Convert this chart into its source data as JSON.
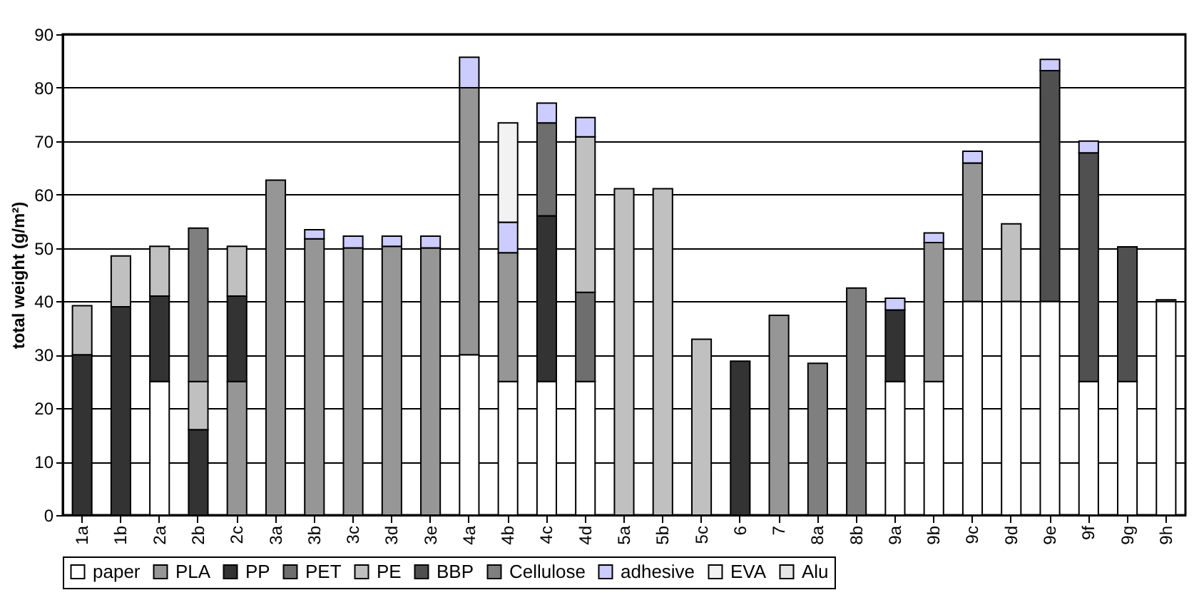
{
  "chart_data": {
    "type": "bar",
    "stacked": true,
    "ylabel": "total weight (g/m²)",
    "categories": [
      "1a",
      "1b",
      "2a",
      "2b",
      "2c",
      "3a",
      "3b",
      "3c",
      "3d",
      "3e",
      "4a",
      "4b",
      "4c",
      "4d",
      "5a",
      "5b",
      "5c",
      "6",
      "7",
      "8a",
      "8b",
      "9a",
      "9b",
      "9c",
      "9d",
      "9e",
      "9f",
      "9g",
      "9h"
    ],
    "series": [
      {
        "name": "paper",
        "color": "#ffffff",
        "values": [
          null,
          null,
          25,
          null,
          null,
          null,
          null,
          null,
          null,
          null,
          30,
          25,
          25,
          25,
          null,
          null,
          null,
          null,
          null,
          null,
          null,
          25,
          25,
          40,
          40,
          40,
          25,
          25,
          40
        ]
      },
      {
        "name": "PLA",
        "color": "#969696",
        "values": [
          null,
          null,
          null,
          null,
          25,
          62.7,
          51.7,
          50,
          50.3,
          50,
          50,
          24.1,
          null,
          null,
          null,
          null,
          null,
          null,
          37.4,
          null,
          null,
          null,
          26,
          25.9,
          null,
          null,
          null,
          null,
          null
        ]
      },
      {
        "name": "PP",
        "color": "#333333",
        "values": [
          30,
          39,
          16,
          16,
          16,
          null,
          null,
          null,
          null,
          null,
          null,
          null,
          31,
          null,
          null,
          null,
          null,
          28.8,
          null,
          null,
          null,
          13.4,
          null,
          null,
          null,
          null,
          null,
          null,
          null
        ]
      },
      {
        "name": "PET",
        "color": "#6e6e6e",
        "values": [
          null,
          null,
          null,
          null,
          null,
          null,
          null,
          null,
          null,
          null,
          null,
          null,
          17.4,
          16.7,
          null,
          null,
          null,
          null,
          null,
          null,
          null,
          null,
          null,
          null,
          null,
          null,
          null,
          null,
          null
        ]
      },
      {
        "name": "PE",
        "color": "#c0c0c0",
        "values": [
          9.2,
          9.5,
          9.3,
          9,
          9.3,
          null,
          null,
          null,
          null,
          null,
          null,
          null,
          null,
          29.1,
          61.1,
          61.1,
          32.9,
          null,
          null,
          null,
          null,
          null,
          null,
          null,
          14.5,
          null,
          null,
          null,
          null
        ]
      },
      {
        "name": "BBP",
        "color": "#505050",
        "values": [
          null,
          null,
          null,
          null,
          null,
          null,
          null,
          null,
          null,
          null,
          null,
          null,
          null,
          null,
          null,
          null,
          null,
          null,
          null,
          null,
          null,
          null,
          null,
          null,
          null,
          43.2,
          42.8,
          25.2,
          null
        ]
      },
      {
        "name": "Cellulose",
        "color": "#7f7f7f",
        "values": [
          null,
          null,
          null,
          28.7,
          null,
          null,
          null,
          null,
          null,
          null,
          null,
          null,
          null,
          null,
          null,
          null,
          null,
          null,
          null,
          28.4,
          42.5,
          null,
          null,
          null,
          null,
          null,
          null,
          null,
          null
        ]
      },
      {
        "name": "adhesive",
        "color": "#ccccff",
        "values": [
          null,
          null,
          null,
          null,
          null,
          null,
          1.7,
          2.2,
          1.9,
          2.2,
          5.7,
          5.7,
          3.7,
          3.6,
          null,
          null,
          null,
          null,
          null,
          null,
          null,
          2.2,
          1.8,
          2.2,
          null,
          2.1,
          2.2,
          null,
          null
        ]
      },
      {
        "name": "EVA",
        "color": "#f2f2f2",
        "values": [
          null,
          null,
          null,
          null,
          null,
          null,
          null,
          null,
          null,
          null,
          null,
          18.6,
          null,
          null,
          null,
          null,
          null,
          null,
          null,
          null,
          null,
          null,
          null,
          null,
          null,
          null,
          null,
          null,
          null
        ]
      },
      {
        "name": "Alu",
        "color": "#e6e6e6",
        "values": [
          null,
          null,
          null,
          null,
          null,
          null,
          null,
          null,
          null,
          null,
          null,
          null,
          null,
          null,
          null,
          null,
          null,
          null,
          null,
          null,
          null,
          null,
          null,
          null,
          null,
          null,
          null,
          null,
          0.3
        ]
      }
    ],
    "ylim": [
      0,
      90
    ],
    "yticks": [
      0,
      10,
      20,
      30,
      40,
      50,
      60,
      70,
      80,
      90
    ],
    "grid": "y",
    "legend": "bottom"
  }
}
